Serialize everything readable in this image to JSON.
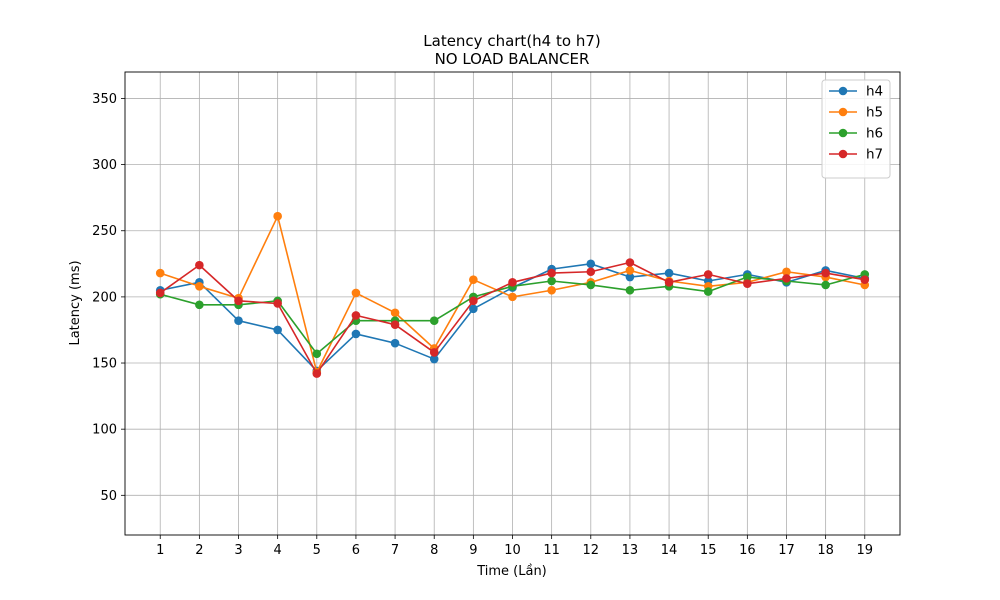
{
  "chart_data": {
    "type": "line",
    "title": "Latency chart(h4 to h7)",
    "subtitle": "NO LOAD BALANCER",
    "xlabel": "Time (Lần)",
    "ylabel": "Latency (ms)",
    "x": [
      1,
      2,
      3,
      4,
      5,
      6,
      7,
      8,
      9,
      10,
      11,
      12,
      13,
      14,
      15,
      16,
      17,
      18,
      19
    ],
    "xlim": [
      0.1,
      19.9
    ],
    "ylim": [
      20,
      370
    ],
    "yticks": [
      50,
      100,
      150,
      200,
      250,
      300,
      350
    ],
    "grid": true,
    "legend_position": "top-right",
    "series": [
      {
        "name": "h4",
        "color": "#1f77b4",
        "values": [
          205,
          211,
          182,
          175,
          144,
          172,
          165,
          153,
          191,
          207,
          221,
          225,
          215,
          218,
          212,
          217,
          211,
          220,
          214
        ]
      },
      {
        "name": "h5",
        "color": "#ff7f0e",
        "values": [
          218,
          208,
          199,
          261,
          143,
          203,
          188,
          161,
          213,
          200,
          205,
          211,
          220,
          212,
          208,
          211,
          219,
          215,
          209
        ]
      },
      {
        "name": "h6",
        "color": "#2ca02c",
        "values": [
          202,
          194,
          194,
          197,
          157,
          182,
          182,
          182,
          200,
          208,
          212,
          209,
          205,
          208,
          204,
          215,
          212,
          209,
          217
        ]
      },
      {
        "name": "h7",
        "color": "#d62728",
        "values": [
          203,
          224,
          197,
          195,
          142,
          186,
          179,
          158,
          197,
          211,
          218,
          219,
          226,
          211,
          217,
          210,
          214,
          218,
          213
        ]
      }
    ]
  }
}
